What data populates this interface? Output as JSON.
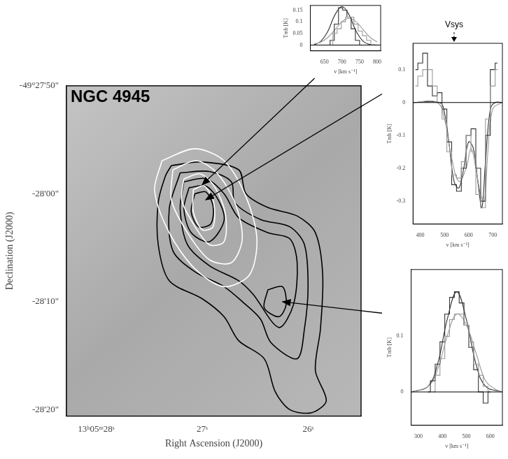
{
  "chart_data": [
    {
      "type": "contour",
      "title": "NGC 4945",
      "x_label": "Right Ascension (J2000)",
      "y_label": "Declination (J2000)",
      "xlim": [
        28.28,
        25.5
      ],
      "xticks": [
        {
          "value": 28,
          "label": "13ʰ05ᵐ28ˢ"
        },
        {
          "value": 27,
          "label": "27ˢ"
        },
        {
          "value": 26,
          "label": "26ˢ"
        }
      ],
      "ylim": [
        -20.6,
        10
      ],
      "yticks": [
        {
          "value": 10,
          "label": "-49°27'50\""
        },
        {
          "value": 0,
          "label": "-28'00\""
        },
        {
          "value": -10,
          "label": "-28'10\""
        },
        {
          "value": -20,
          "label": "-28'20\""
        }
      ],
      "grid": false,
      "series": [
        {
          "color": "#ffffff",
          "line_style": "smooth",
          "x": [
            27.379,
            27.069,
            26.793,
            26.586,
            26.483,
            26.552,
            26.793,
            27.069,
            27.31,
            27.448
          ],
          "values": [
            3.06,
            4.17,
            3.06,
            -0.28,
            -4.17,
            -7.5,
            -8.61,
            -6.94,
            -3.61,
            0.28
          ]
        },
        {
          "color": "#ffffff",
          "line_style": "smooth",
          "x": [
            27.276,
            27.055,
            26.862,
            26.69,
            26.621,
            26.724,
            26.931,
            27.138,
            27.29
          ],
          "values": [
            2.22,
            3.06,
            1.94,
            -0.83,
            -4.17,
            -6.39,
            -6.11,
            -3.61,
            -0.56
          ]
        },
        {
          "color": "#ffffff",
          "line_style": "smooth",
          "x": [
            27.172,
            27.014,
            26.876,
            26.779,
            26.793,
            26.931,
            27.083,
            27.193
          ],
          "values": [
            1.39,
            1.83,
            0.56,
            -1.94,
            -4.44,
            -4.72,
            -2.78,
            -0.56
          ]
        },
        {
          "color": "#ffffff",
          "line_style": "smooth",
          "x": [
            27.083,
            26.979,
            26.89,
            26.897,
            27.0,
            27.083
          ],
          "values": [
            0.39,
            0.72,
            -0.83,
            -3.06,
            -3.33,
            -1.67
          ]
        },
        {
          "color": "#000000",
          "line_style": "smooth",
          "x": [
            27.29,
            27.0,
            26.655,
            26.586,
            26.379,
            26.103,
            25.931,
            25.862,
            25.883,
            25.931,
            25.828,
            25.966,
            26.172,
            26.31,
            26.414,
            26.655,
            26.793,
            27.0,
            27.31,
            27.414,
            27.414,
            27.345
          ],
          "values": [
            2.61,
            2.94,
            2.22,
            0,
            -1.28,
            -2.06,
            -3.61,
            -7.5,
            -12.5,
            -16.39,
            -19.17,
            -20.28,
            -20.0,
            -18.33,
            -15.28,
            -13.61,
            -11.39,
            -9.72,
            -8.06,
            -4.72,
            -0.83,
            1.67
          ]
        },
        {
          "color": "#000000",
          "line_style": "smooth",
          "x": [
            27.207,
            26.931,
            26.724,
            26.69,
            26.448,
            26.172,
            26.034,
            26.0,
            26.034,
            26.103,
            26.35,
            26.45,
            26.62,
            26.793,
            27.069,
            27.276,
            27.31
          ],
          "values": [
            1.94,
            2.06,
            1.11,
            -0.83,
            -2.39,
            -3.06,
            -4.72,
            -8.61,
            -12.5,
            -15.28,
            -13.8,
            -11.6,
            -10.0,
            -8.61,
            -7.22,
            -5.28,
            -1.39
          ]
        },
        {
          "color": "#000000",
          "line_style": "smooth",
          "x": [
            27.172,
            26.966,
            26.793,
            26.655,
            26.379,
            26.172,
            26.103,
            26.138,
            26.276,
            26.52,
            26.655,
            26.931,
            27.138,
            27.207
          ],
          "values": [
            1.11,
            1.39,
            0,
            -2.22,
            -3.61,
            -4.17,
            -6.39,
            -10.28,
            -12.39,
            -9.3,
            -8.06,
            -6.67,
            -4.72,
            -1.39
          ]
        },
        {
          "color": "#000000",
          "line_style": "smooth",
          "x": [
            27.124,
            26.966,
            26.848,
            26.793,
            26.931,
            27.103,
            27.172
          ],
          "values": [
            0.56,
            0.72,
            -0.56,
            -2.5,
            -4.44,
            -3.61,
            -1.39
          ]
        },
        {
          "color": "#000000",
          "line_style": "smooth",
          "x": [
            26.379,
            26.241,
            26.207,
            26.276,
            26.414
          ],
          "values": [
            -8.89,
            -8.61,
            -10.28,
            -11.39,
            -10.56
          ]
        },
        {
          "color": "#000000",
          "line_style": "smooth",
          "x": [
            27.069,
            26.966,
            26.897,
            26.917,
            27.034,
            27.103
          ],
          "values": [
            0,
            0.17,
            -1.11,
            -2.78,
            -3.06,
            -1.67
          ]
        }
      ],
      "spectrum_positions": [
        {
          "ra": 27.0,
          "dec": 0.83
        },
        {
          "ra": 26.966,
          "dec": -0.56
        },
        {
          "ra": 26.241,
          "dec": -10.0
        }
      ]
    },
    {
      "type": "line",
      "x_label": "v [km s⁻¹]",
      "y_label": "Tmb [K]",
      "xlim": [
        610,
        810
      ],
      "xticks": [
        650,
        700,
        750,
        800
      ],
      "ylim": [
        -0.025,
        0.17
      ],
      "yticks": [
        0,
        0.05,
        0.1,
        0.15
      ],
      "grid": false,
      "series": [
        {
          "color": "#000000",
          "line_style": "solid",
          "x": [
            610,
            810
          ],
          "values": [
            0,
            0
          ]
        },
        {
          "color": "#999999",
          "line_style": "steps",
          "x": [
            668,
            680,
            692,
            704,
            716,
            728,
            740,
            752,
            764,
            776,
            788
          ],
          "values": [
            0,
            0.05,
            0.07,
            0.1,
            0.12,
            0.12,
            0.09,
            0.06,
            0.04,
            0.02,
            0
          ]
        },
        {
          "color": "#333333",
          "line_style": "steps",
          "x": [
            660,
            672,
            684,
            696,
            708,
            720,
            732,
            744,
            756,
            768
          ],
          "values": [
            0,
            0.02,
            0.09,
            0.16,
            0.15,
            0.12,
            0.07,
            0.02,
            0,
            0
          ]
        },
        {
          "color": "#999999",
          "line_style": "smooth",
          "x": [
            620,
            640,
            660,
            680,
            700,
            720,
            740,
            760,
            780,
            800
          ],
          "values": [
            0.005,
            0.013,
            0.033,
            0.066,
            0.1,
            0.115,
            0.1,
            0.066,
            0.033,
            0.013
          ]
        },
        {
          "color": "#333333",
          "line_style": "smooth",
          "x": [
            620,
            640,
            660,
            680,
            700,
            720,
            740,
            760,
            780,
            800
          ],
          "values": [
            0,
            0.017,
            0.06,
            0.13,
            0.165,
            0.13,
            0.06,
            0.017,
            0.002,
            0
          ]
        }
      ]
    },
    {
      "type": "line",
      "x_label": "v [km s⁻¹]",
      "y_label": "Tmb [K]",
      "xlim": [
        370,
        740
      ],
      "xticks": [
        400,
        500,
        600,
        700
      ],
      "ylim": [
        -0.37,
        0.18
      ],
      "yticks": [
        -0.3,
        -0.2,
        -0.1,
        0,
        0.1
      ],
      "grid": false,
      "annotations": [
        {
          "text": "Vsys",
          "x": 540
        }
      ],
      "series": [
        {
          "color": "#000000",
          "line_style": "solid",
          "x": [
            370,
            740
          ],
          "values": [
            0,
            0
          ]
        },
        {
          "color": "#999999",
          "line_style": "steps",
          "x": [
            380,
            400,
            420,
            440,
            460,
            480,
            500,
            520,
            540,
            560,
            580,
            600,
            620,
            640,
            660,
            680,
            700,
            720
          ],
          "values": [
            0.05,
            0.08,
            0.1,
            0.1,
            0.05,
            0,
            -0.05,
            -0.15,
            -0.22,
            -0.23,
            -0.18,
            -0.1,
            -0.15,
            -0.28,
            -0.32,
            -0.05,
            0.05,
            0.1
          ]
        },
        {
          "color": "#333333",
          "line_style": "steps",
          "x": [
            380,
            400,
            420,
            440,
            460,
            480,
            500,
            520,
            540,
            560,
            580,
            600,
            620,
            640,
            660,
            680,
            700,
            720
          ],
          "values": [
            0.1,
            0.12,
            0.15,
            0.05,
            0.02,
            0.03,
            -0.02,
            -0.12,
            -0.25,
            -0.27,
            -0.2,
            -0.1,
            -0.08,
            -0.2,
            -0.3,
            -0.1,
            0.1,
            0.12
          ]
        },
        {
          "color": "#999999",
          "line_style": "smooth",
          "x": [
            370,
            470,
            500,
            530,
            560,
            590,
            610,
            630,
            650,
            665,
            680,
            700,
            740
          ],
          "values": [
            0,
            0,
            -0.05,
            -0.17,
            -0.24,
            -0.2,
            -0.14,
            -0.2,
            -0.28,
            -0.3,
            -0.15,
            -0.02,
            0
          ]
        },
        {
          "color": "#333333",
          "line_style": "smooth",
          "x": [
            370,
            480,
            500,
            520,
            540,
            560,
            580,
            600,
            620,
            640,
            655,
            670,
            690,
            710,
            740
          ],
          "values": [
            0,
            0,
            -0.03,
            -0.13,
            -0.24,
            -0.26,
            -0.2,
            -0.12,
            -0.14,
            -0.25,
            -0.32,
            -0.18,
            -0.02,
            0,
            0
          ]
        }
      ]
    },
    {
      "type": "line",
      "x_label": "v [km s⁻¹]",
      "y_label": "Tmb [K]",
      "xlim": [
        270,
        650
      ],
      "xticks": [
        300,
        400,
        500,
        600
      ],
      "ylim": [
        -0.06,
        0.22
      ],
      "yticks": [
        0,
        0.1
      ],
      "grid": false,
      "series": [
        {
          "color": "#000000",
          "line_style": "solid",
          "x": [
            270,
            650
          ],
          "values": [
            0,
            0
          ]
        },
        {
          "color": "#999999",
          "line_style": "steps",
          "x": [
            360,
            380,
            400,
            420,
            440,
            460,
            480,
            500,
            520,
            540,
            560,
            580,
            600
          ],
          "values": [
            0,
            0.03,
            0.06,
            0.1,
            0.13,
            0.14,
            0.14,
            0.12,
            0.09,
            0.05,
            0.03,
            0.01,
            0
          ]
        },
        {
          "color": "#333333",
          "line_style": "steps",
          "x": [
            340,
            360,
            380,
            400,
            420,
            440,
            460,
            480,
            500,
            520,
            540,
            560,
            580,
            600
          ],
          "values": [
            0,
            0.02,
            0.05,
            0.09,
            0.14,
            0.17,
            0.18,
            0.16,
            0.12,
            0.08,
            0.04,
            0,
            -0.02,
            0
          ]
        },
        {
          "color": "#999999",
          "line_style": "smooth",
          "x": [
            270,
            340,
            380,
            420,
            460,
            500,
            540,
            580,
            620,
            650
          ],
          "values": [
            0,
            0.01,
            0.04,
            0.1,
            0.14,
            0.12,
            0.07,
            0.02,
            0.005,
            0
          ]
        },
        {
          "color": "#333333",
          "line_style": "smooth",
          "x": [
            270,
            340,
            380,
            420,
            460,
            500,
            540,
            580,
            650
          ],
          "values": [
            0,
            0.01,
            0.05,
            0.13,
            0.18,
            0.13,
            0.05,
            0.01,
            0
          ]
        }
      ]
    }
  ]
}
